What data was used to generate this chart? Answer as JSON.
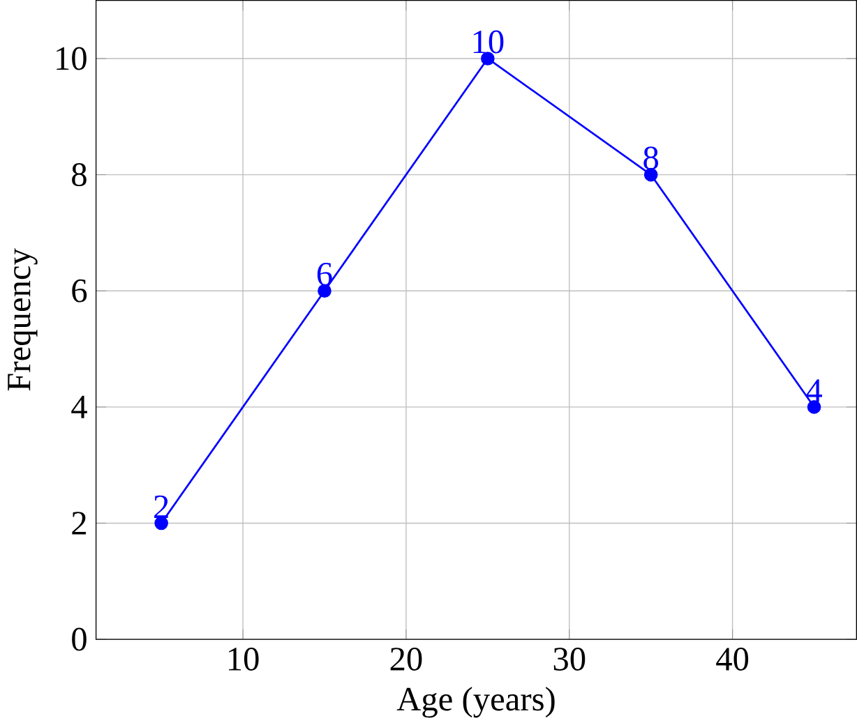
{
  "chart_data": {
    "type": "line",
    "xlabel": "Age (years)",
    "ylabel": "Frequency",
    "x": [
      5,
      15,
      25,
      35,
      45
    ],
    "series": [
      {
        "color": "#0000ff",
        "values": [
          2,
          6,
          10,
          8,
          4
        ]
      }
    ],
    "xlim": [
      1,
      47.6
    ],
    "ylim": [
      0,
      11
    ],
    "xticks": [
      10,
      20,
      30,
      40
    ],
    "yticks": [
      0,
      2,
      4,
      6,
      8,
      10
    ],
    "grid": true,
    "marker": "circle",
    "line_style": "solid",
    "data_labels": true
  }
}
